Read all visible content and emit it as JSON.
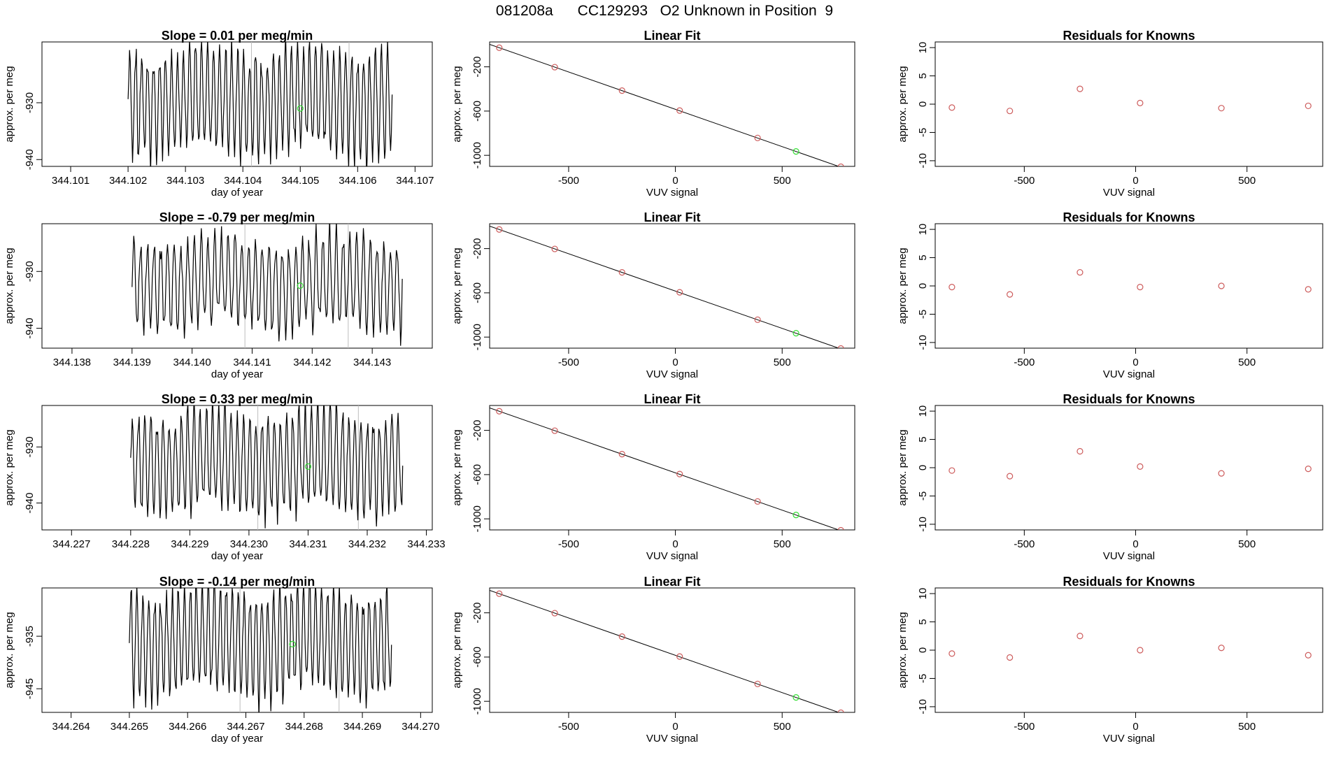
{
  "title": "081208a      CC129293   O2 Unknown in Position  9",
  "labels": {
    "ylabel": "approx. per meg",
    "xlabel_time": "day of year",
    "xlabel_vuv": "VUV signal",
    "linear_fit_title": "Linear Fit",
    "residuals_title": "Residuals for Knowns"
  },
  "colors": {
    "line": "#000000",
    "known": "#cd5c5c",
    "unknown": "#33dd33",
    "grid": "#bdbdbd"
  },
  "chart_data": [
    {
      "type": "line",
      "panel": "time-series",
      "row": 1,
      "title": "Slope =  0.01  per meg/min",
      "xlabel": "day of year",
      "ylabel": "approx. per meg",
      "xlim": [
        344.1005,
        344.1073
      ],
      "ylim": [
        -941.2,
        -919.3
      ],
      "xticks": [
        "344.101",
        "344.102",
        "344.103",
        "344.104",
        "344.105",
        "344.106",
        "344.107"
      ],
      "yticks": [
        "-930",
        "-940"
      ],
      "vlines": [
        344.10415,
        344.10585
      ],
      "unknown_point": {
        "x": 344.105,
        "y": -931.0
      },
      "trace": {
        "start": 344.102,
        "end": 344.1066,
        "center": -929.5,
        "amplitude": 10.5,
        "cycles": 44
      }
    },
    {
      "type": "scatter",
      "panel": "linear-fit",
      "row": 1,
      "title": "Linear Fit",
      "xlabel": "VUV signal",
      "ylabel": "approx. per meg",
      "xlim": [
        -870,
        840
      ],
      "ylim": [
        -1100,
        25
      ],
      "xticks": [
        "-500",
        "0",
        "500"
      ],
      "yticks": [
        "-200",
        "-600",
        "-1000"
      ],
      "line": {
        "slope": -0.675,
        "intercept": -584
      },
      "knowns": [
        [
          -825,
          -27
        ],
        [
          -565,
          -203
        ],
        [
          -250,
          -415
        ],
        [
          20,
          -595
        ],
        [
          385,
          -843
        ],
        [
          775,
          -1103
        ]
      ],
      "unknown": [
        [
          565,
          -965
        ]
      ]
    },
    {
      "type": "scatter",
      "panel": "residuals",
      "row": 1,
      "title": "Residuals for Knowns",
      "xlabel": "VUV signal",
      "ylabel": "approx. per meg",
      "xlim": [
        -900,
        840
      ],
      "ylim": [
        -11,
        11
      ],
      "xticks": [
        "-500",
        "0",
        "500"
      ],
      "yticks": [
        "10",
        "5",
        "0",
        "-5",
        "-10"
      ],
      "knowns": [
        [
          -825,
          -0.6
        ],
        [
          -565,
          -1.2
        ],
        [
          -250,
          2.7
        ],
        [
          20,
          0.2
        ],
        [
          385,
          -0.7
        ],
        [
          775,
          -0.3
        ]
      ]
    },
    {
      "type": "line",
      "panel": "time-series",
      "row": 2,
      "title": "Slope =  -0.79  per meg/min",
      "xlabel": "day of year",
      "ylabel": "approx. per meg",
      "xlim": [
        344.1375,
        344.144
      ],
      "ylim": [
        -943.5,
        -921.6
      ],
      "xticks": [
        "344.138",
        "344.139",
        "344.140",
        "344.141",
        "344.142",
        "344.143"
      ],
      "yticks": [
        "-930",
        "-940"
      ],
      "vlines": [
        344.14088,
        344.1426
      ],
      "unknown_point": {
        "x": 344.1418,
        "y": -932.5
      },
      "trace": {
        "start": 344.139,
        "end": 344.1435,
        "center": -932.0,
        "amplitude": 9.0,
        "cycles": 40
      }
    },
    {
      "type": "scatter",
      "panel": "linear-fit",
      "row": 2,
      "title": "Linear Fit",
      "xlabel": "VUV signal",
      "ylabel": "approx. per meg",
      "xlim": [
        -870,
        840
      ],
      "ylim": [
        -1100,
        25
      ],
      "xticks": [
        "-500",
        "0",
        "500"
      ],
      "yticks": [
        "-200",
        "-600",
        "-1000"
      ],
      "line": {
        "slope": -0.675,
        "intercept": -584
      },
      "knowns": [
        [
          -825,
          -27
        ],
        [
          -565,
          -203
        ],
        [
          -250,
          -415
        ],
        [
          20,
          -595
        ],
        [
          385,
          -843
        ],
        [
          775,
          -1103
        ]
      ],
      "unknown": [
        [
          565,
          -965
        ]
      ]
    },
    {
      "type": "scatter",
      "panel": "residuals",
      "row": 2,
      "title": "Residuals for Knowns",
      "xlabel": "VUV signal",
      "ylabel": "approx. per meg",
      "xlim": [
        -900,
        840
      ],
      "ylim": [
        -11,
        11
      ],
      "xticks": [
        "-500",
        "0",
        "500"
      ],
      "yticks": [
        "10",
        "5",
        "0",
        "-5",
        "-10"
      ],
      "knowns": [
        [
          -825,
          -0.2
        ],
        [
          -565,
          -1.5
        ],
        [
          -250,
          2.4
        ],
        [
          20,
          -0.2
        ],
        [
          385,
          0.0
        ],
        [
          775,
          -0.6
        ]
      ]
    },
    {
      "type": "line",
      "panel": "time-series",
      "row": 3,
      "title": "Slope =  0.33  per meg/min",
      "xlabel": "day of year",
      "ylabel": "approx. per meg",
      "xlim": [
        344.2265,
        344.2331
      ],
      "ylim": [
        -944.8,
        -922.6
      ],
      "xticks": [
        "344.227",
        "344.228",
        "344.229",
        "344.230",
        "344.231",
        "344.232",
        "344.233"
      ],
      "yticks": [
        "-930",
        "-940"
      ],
      "vlines": [
        344.23015,
        344.23185
      ],
      "unknown_point": {
        "x": 344.231,
        "y": -933.5
      },
      "trace": {
        "start": 344.228,
        "end": 344.2326,
        "center": -932.5,
        "amplitude": 10.0,
        "cycles": 44
      }
    },
    {
      "type": "scatter",
      "panel": "linear-fit",
      "row": 3,
      "title": "Linear Fit",
      "xlabel": "VUV signal",
      "ylabel": "approx. per meg",
      "xlim": [
        -870,
        840
      ],
      "ylim": [
        -1100,
        25
      ],
      "xticks": [
        "-500",
        "0",
        "500"
      ],
      "yticks": [
        "-200",
        "-600",
        "-1000"
      ],
      "line": {
        "slope": -0.675,
        "intercept": -584
      },
      "knowns": [
        [
          -825,
          -27
        ],
        [
          -565,
          -203
        ],
        [
          -250,
          -415
        ],
        [
          20,
          -595
        ],
        [
          385,
          -843
        ],
        [
          775,
          -1103
        ]
      ],
      "unknown": [
        [
          565,
          -965
        ]
      ]
    },
    {
      "type": "scatter",
      "panel": "residuals",
      "row": 3,
      "title": "Residuals for Knowns",
      "xlabel": "VUV signal",
      "ylabel": "approx. per meg",
      "xlim": [
        -900,
        840
      ],
      "ylim": [
        -11,
        11
      ],
      "xticks": [
        "-500",
        "0",
        "500"
      ],
      "yticks": [
        "10",
        "5",
        "0",
        "-5",
        "-10"
      ],
      "knowns": [
        [
          -825,
          -0.5
        ],
        [
          -565,
          -1.5
        ],
        [
          -250,
          2.9
        ],
        [
          20,
          0.2
        ],
        [
          385,
          -1.0
        ],
        [
          775,
          -0.2
        ]
      ]
    },
    {
      "type": "line",
      "panel": "time-series",
      "row": 4,
      "title": "Slope =  -0.14  per meg/min",
      "xlabel": "day of year",
      "ylabel": "approx. per meg",
      "xlim": [
        344.2635,
        344.2702
      ],
      "ylim": [
        -949.5,
        -925.8
      ],
      "xticks": [
        "344.264",
        "344.265",
        "344.266",
        "344.267",
        "344.268",
        "344.269",
        "344.270"
      ],
      "yticks": [
        "-935",
        "-945"
      ],
      "vlines": [
        344.2669,
        344.2686
      ],
      "unknown_point": {
        "x": 344.2678,
        "y": -936.5
      },
      "trace": {
        "start": 344.265,
        "end": 344.2695,
        "center": -936.0,
        "amplitude": 11.5,
        "cycles": 44
      }
    },
    {
      "type": "scatter",
      "panel": "linear-fit",
      "row": 4,
      "title": "Linear Fit",
      "xlabel": "VUV signal",
      "ylabel": "approx. per meg",
      "xlim": [
        -870,
        840
      ],
      "ylim": [
        -1100,
        25
      ],
      "xticks": [
        "-500",
        "0",
        "500"
      ],
      "yticks": [
        "-200",
        "-600",
        "-1000"
      ],
      "line": {
        "slope": -0.675,
        "intercept": -584
      },
      "knowns": [
        [
          -825,
          -27
        ],
        [
          -565,
          -203
        ],
        [
          -250,
          -415
        ],
        [
          20,
          -595
        ],
        [
          385,
          -843
        ],
        [
          775,
          -1103
        ]
      ],
      "unknown": [
        [
          565,
          -965
        ]
      ]
    },
    {
      "type": "scatter",
      "panel": "residuals",
      "row": 4,
      "title": "Residuals for Knowns",
      "xlabel": "VUV signal",
      "ylabel": "approx. per meg",
      "xlim": [
        -900,
        840
      ],
      "ylim": [
        -11,
        11
      ],
      "xticks": [
        "-500",
        "0",
        "500"
      ],
      "yticks": [
        "10",
        "5",
        "0",
        "-5",
        "-10"
      ],
      "knowns": [
        [
          -825,
          -0.6
        ],
        [
          -565,
          -1.3
        ],
        [
          -250,
          2.5
        ],
        [
          20,
          0.0
        ],
        [
          385,
          0.4
        ],
        [
          775,
          -0.9
        ]
      ]
    }
  ]
}
